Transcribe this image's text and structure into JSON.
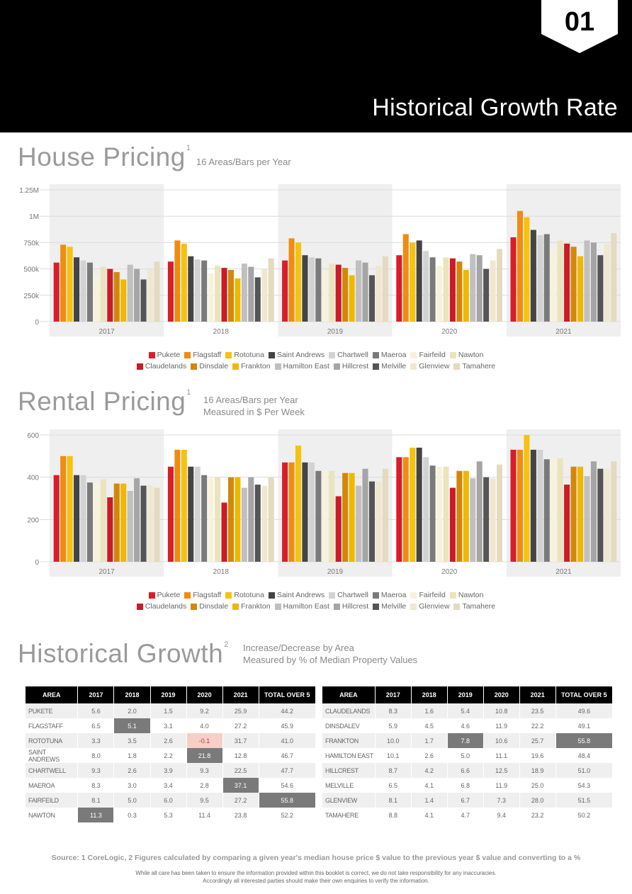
{
  "header": {
    "page_number": "01",
    "title": "Historical Growth Rate"
  },
  "house": {
    "title": "House Pricing",
    "sup": "1",
    "subtitle": "16 Areas/Bars per Year"
  },
  "rental": {
    "title": "Rental Pricing",
    "sup": "1",
    "subtitle_line1": "16 Areas/Bars per Year",
    "subtitle_line2": "Measured in $ Per Week"
  },
  "growth": {
    "title": "Historical Growth",
    "sup": "2",
    "subtitle_line1": "Increase/Decrease by Area",
    "subtitle_line2": "Measured by % of Median Property Values"
  },
  "colors": {
    "Pukete": "#d81e2a",
    "Flagstaff": "#ef8c12",
    "Rototuna": "#f5c20f",
    "Saint Andrews": "#444444",
    "Chartwell": "#d2d2d2",
    "Maeroa": "#7a7a7a",
    "Fairfeild": "#f7f2dc",
    "Nawton": "#ebe3be",
    "Claudelands": "#c91c26",
    "Dinsdale": "#d3870a",
    "Frankton": "#efb800",
    "Hamilton East": "#c0c0c0",
    "Hillcrest": "#a5a5a5",
    "Melville": "#555555",
    "Glenview": "#efe7d0",
    "Tamahere": "#e3dac0"
  },
  "legend": {
    "row1": [
      "Pukete",
      "Flagstaff",
      "Rototuna",
      "Saint Andrews",
      "Chartwell",
      "Maeroa",
      "Fairfeild",
      "Nawton"
    ],
    "row2": [
      "Claudelands",
      "Dinsdale",
      "Frankton",
      "Hamilton East",
      "Hillcrest",
      "Melville",
      "Glenview",
      "Tamahere"
    ]
  },
  "chart_data": [
    {
      "type": "bar",
      "title": "House Pricing",
      "categories": [
        "2017",
        "2018",
        "2019",
        "2020",
        "2021"
      ],
      "ylim": [
        0,
        1250000
      ],
      "yticks": [
        {
          "value": 0,
          "label": "0"
        },
        {
          "value": 250000,
          "label": "250k"
        },
        {
          "value": 500000,
          "label": "500k"
        },
        {
          "value": 750000,
          "label": "750k"
        },
        {
          "value": 1000000,
          "label": "1M"
        },
        {
          "value": 1250000,
          "label": "1.25M"
        }
      ],
      "grid": true,
      "legend_position": "bottom",
      "series": [
        {
          "name": "Pukete",
          "values": [
            560000,
            570000,
            580000,
            630000,
            800000
          ]
        },
        {
          "name": "Flagstaff",
          "values": [
            730000,
            770000,
            790000,
            830000,
            1050000
          ]
        },
        {
          "name": "Rototuna",
          "values": [
            710000,
            740000,
            750000,
            750000,
            990000
          ]
        },
        {
          "name": "Saint Andrews",
          "values": [
            610000,
            620000,
            630000,
            770000,
            870000
          ]
        },
        {
          "name": "Chartwell",
          "values": [
            580000,
            590000,
            610000,
            670000,
            820000
          ]
        },
        {
          "name": "Maeroa",
          "values": [
            560000,
            580000,
            600000,
            610000,
            830000
          ]
        },
        {
          "name": "Fairfeild",
          "values": [
            440000,
            460000,
            490000,
            530000,
            680000
          ]
        },
        {
          "name": "Nawton",
          "values": [
            520000,
            530000,
            550000,
            610000,
            770000
          ]
        },
        {
          "name": "Claudelands",
          "values": [
            500000,
            510000,
            540000,
            600000,
            740000
          ]
        },
        {
          "name": "Dinsdale",
          "values": [
            470000,
            490000,
            510000,
            570000,
            710000
          ]
        },
        {
          "name": "Frankton",
          "values": [
            400000,
            410000,
            440000,
            490000,
            620000
          ]
        },
        {
          "name": "Hamilton East",
          "values": [
            540000,
            550000,
            580000,
            640000,
            770000
          ]
        },
        {
          "name": "Hillcrest",
          "values": [
            500000,
            520000,
            560000,
            630000,
            750000
          ]
        },
        {
          "name": "Melville",
          "values": [
            400000,
            420000,
            440000,
            500000,
            630000
          ]
        },
        {
          "name": "Glenview",
          "values": [
            500000,
            500000,
            530000,
            580000,
            740000
          ]
        },
        {
          "name": "Tamahere",
          "values": [
            570000,
            600000,
            620000,
            690000,
            840000
          ]
        }
      ]
    },
    {
      "type": "bar",
      "title": "Rental Pricing",
      "categories": [
        "2017",
        "2018",
        "2019",
        "2020",
        "2021"
      ],
      "ylim": [
        0,
        600
      ],
      "yticks": [
        {
          "value": 0,
          "label": "0"
        },
        {
          "value": 200,
          "label": "200"
        },
        {
          "value": 400,
          "label": "400"
        },
        {
          "value": 600,
          "label": "600"
        }
      ],
      "grid": true,
      "legend_position": "bottom",
      "series": [
        {
          "name": "Pukete",
          "values": [
            410,
            450,
            470,
            495,
            530
          ]
        },
        {
          "name": "Flagstaff",
          "values": [
            500,
            530,
            470,
            495,
            530
          ]
        },
        {
          "name": "Rototuna",
          "values": [
            500,
            530,
            550,
            540,
            600
          ]
        },
        {
          "name": "Saint Andrews",
          "values": [
            410,
            450,
            470,
            540,
            530
          ]
        },
        {
          "name": "Chartwell",
          "values": [
            410,
            450,
            470,
            495,
            530
          ]
        },
        {
          "name": "Maeroa",
          "values": [
            375,
            410,
            430,
            455,
            485
          ]
        },
        {
          "name": "Fairfeild",
          "values": [
            375,
            395,
            430,
            450,
            490
          ]
        },
        {
          "name": "Nawton",
          "values": [
            390,
            400,
            430,
            450,
            490
          ]
        },
        {
          "name": "Claudelands",
          "values": [
            305,
            280,
            310,
            350,
            365
          ]
        },
        {
          "name": "Dinsdale",
          "values": [
            370,
            400,
            420,
            430,
            450
          ]
        },
        {
          "name": "Frankton",
          "values": [
            370,
            400,
            420,
            430,
            450
          ]
        },
        {
          "name": "Hamilton East",
          "values": [
            335,
            350,
            360,
            395,
            405
          ]
        },
        {
          "name": "Hillcrest",
          "values": [
            395,
            400,
            440,
            475,
            475
          ]
        },
        {
          "name": "Melville",
          "values": [
            360,
            365,
            380,
            400,
            440
          ]
        },
        {
          "name": "Glenview",
          "values": [
            360,
            360,
            380,
            395,
            440
          ]
        },
        {
          "name": "Tamahere",
          "values": [
            350,
            400,
            440,
            460,
            475
          ]
        }
      ]
    },
    {
      "type": "table",
      "title": "Historical Growth",
      "columns": [
        "AREA",
        "2017",
        "2018",
        "2019",
        "2020",
        "2021",
        "TOTAL OVER 5"
      ],
      "tables": [
        {
          "rows": [
            {
              "area": "PUKETE",
              "values": [
                "5.6",
                "2.0",
                "1.5",
                "9.2",
                "25.9",
                "44.2"
              ],
              "highlight": [
                -1,
                "none"
              ]
            },
            {
              "area": "FLAGSTAFF",
              "values": [
                "6.5",
                "5.1",
                "3.1",
                "4.0",
                "27.2",
                "45.9"
              ],
              "highlight": [
                1,
                "dark"
              ]
            },
            {
              "area": "ROTOTUNA",
              "values": [
                "3.3",
                "3.5",
                "2.6",
                "-0.1",
                "31.7",
                "41.0"
              ],
              "highlight": [
                3,
                "pink"
              ]
            },
            {
              "area": "SAINT ANDREWS",
              "values": [
                "8.0",
                "1.8",
                "2.2",
                "21.8",
                "12.8",
                "46.7"
              ],
              "highlight": [
                3,
                "dark"
              ]
            },
            {
              "area": "CHARTWELL",
              "values": [
                "9.3",
                "2.6",
                "3.9",
                "9.3",
                "22.5",
                "47.7"
              ],
              "highlight": [
                -1,
                "none"
              ]
            },
            {
              "area": "MAEROA",
              "values": [
                "8.3",
                "3.0",
                "3.4",
                "2.8",
                "37.1",
                "54.6"
              ],
              "highlight": [
                4,
                "dark"
              ]
            },
            {
              "area": "FAIRFEILD",
              "values": [
                "8.1",
                "5.0",
                "6.0",
                "9.5",
                "27.2",
                "55.8"
              ],
              "highlight": [
                5,
                "dark"
              ]
            },
            {
              "area": "NAWTON",
              "values": [
                "11.3",
                "0.3",
                "5.3",
                "11.4",
                "23.8",
                "52.2"
              ],
              "highlight": [
                0,
                "dark"
              ]
            }
          ]
        },
        {
          "rows": [
            {
              "area": "CLAUDELANDS",
              "values": [
                "8.3",
                "1.6",
                "5.4",
                "10.8",
                "23.5",
                "49.6"
              ],
              "highlight": [
                -1,
                "none"
              ]
            },
            {
              "area": "DINSDALEV",
              "values": [
                "5.9",
                "4.5",
                "4.6",
                "11.9",
                "22.2",
                "49.1"
              ],
              "highlight": [
                -1,
                "none"
              ]
            },
            {
              "area": "FRANKTON",
              "values": [
                "10.0",
                "1.7",
                "7.8",
                "10.6",
                "25.7",
                "55.8"
              ],
              "highlight": [
                2,
                "dark",
                5
              ]
            },
            {
              "area": "HAMILTON EAST",
              "values": [
                "10.1",
                "2.6",
                "5.0",
                "11.1",
                "19.6",
                "48.4"
              ],
              "highlight": [
                -1,
                "none"
              ]
            },
            {
              "area": "HILLCREST",
              "values": [
                "8.7",
                "4.2",
                "6.6",
                "12.5",
                "18.9",
                "51.0"
              ],
              "highlight": [
                -1,
                "none"
              ]
            },
            {
              "area": "MELVILLE",
              "values": [
                "6.5",
                "4.1",
                "6.8",
                "11.9",
                "25.0",
                "54.3"
              ],
              "highlight": [
                -1,
                "none"
              ]
            },
            {
              "area": "GLENVIEW",
              "values": [
                "8.1",
                "1.4",
                "6.7",
                "7.3",
                "28.0",
                "51.5"
              ],
              "highlight": [
                -1,
                "none"
              ]
            },
            {
              "area": "TAMAHERE",
              "values": [
                "8.8",
                "4.1",
                "4.7",
                "9.4",
                "23.2",
                "50.2"
              ],
              "highlight": [
                -1,
                "none"
              ]
            }
          ]
        }
      ]
    }
  ],
  "footer": {
    "source": "Source:  1 CoreLogic, 2 Figures calculated by comparing a given year's median house price $ value to the previous year $ value and converting to a %",
    "disclaimer_line1": "While all care has been taken to ensure the information provided within this booklet is correct, we do not take responsibility for any inaccuracies.",
    "disclaimer_line2": "Accordingly all interested parties should make their own enquiries to verify the information."
  }
}
